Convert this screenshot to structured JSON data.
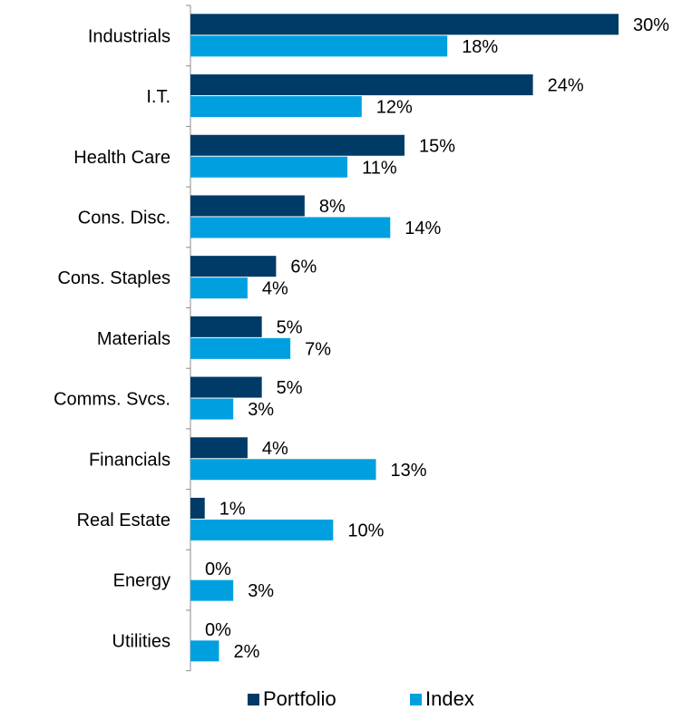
{
  "chart_data": {
    "type": "bar",
    "orientation": "horizontal",
    "categories": [
      "Industrials",
      "I.T.",
      "Health Care",
      "Cons. Disc.",
      "Cons. Staples",
      "Materials",
      "Comms. Svcs.",
      "Financials",
      "Real Estate",
      "Energy",
      "Utilities"
    ],
    "series": [
      {
        "name": "Portfolio",
        "color": "#003A66",
        "values": [
          30,
          24,
          15,
          8,
          6,
          5,
          5,
          4,
          1,
          0,
          0
        ],
        "labels": [
          "30%",
          "24%",
          "15%",
          "8%",
          "6%",
          "5%",
          "5%",
          "4%",
          "1%",
          "0%",
          "0%"
        ]
      },
      {
        "name": "Index",
        "color": "#00A0E0",
        "values": [
          18,
          12,
          11,
          14,
          4,
          7,
          3,
          13,
          10,
          3,
          2
        ],
        "labels": [
          "18%",
          "12%",
          "11%",
          "14%",
          "4%",
          "7%",
          "3%",
          "13%",
          "10%",
          "3%",
          "2%"
        ]
      }
    ],
    "xlim": [
      0,
      30
    ],
    "grid": false,
    "legend": "bottom"
  },
  "legend": {
    "portfolio_label": "Portfolio",
    "index_label": "Index"
  }
}
